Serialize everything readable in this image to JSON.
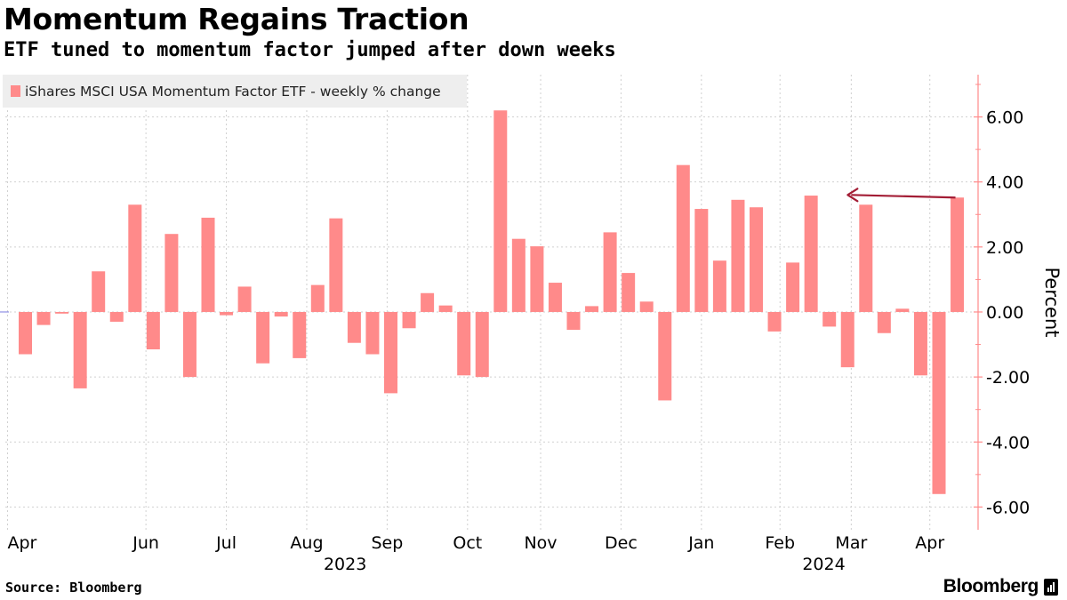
{
  "title": "Momentum Regains Traction",
  "subtitle": "ETF tuned to momentum factor jumped after down weeks",
  "source": "Source: Bloomberg",
  "brand": "Bloomberg",
  "colors": {
    "bar": "#ff8a8a",
    "arrow": "#a31d35",
    "grid": "#d0d0d0",
    "axis": "#ff8a8a",
    "legend_bg": "#eeeeee",
    "text": "#000000"
  },
  "chart_data": {
    "type": "bar",
    "title": "Momentum Regains Traction",
    "subtitle": "ETF tuned to momentum factor jumped after down weeks",
    "series": [
      {
        "name": "iShares MSCI USA Momentum Factor ETF - weekly % change",
        "values": [
          -1.3,
          -0.4,
          -0.05,
          -2.35,
          1.25,
          -0.3,
          3.3,
          -1.15,
          2.4,
          -2.0,
          2.9,
          -0.1,
          0.78,
          -1.58,
          -0.14,
          -1.42,
          0.83,
          2.88,
          -0.95,
          -1.3,
          -2.5,
          -0.5,
          0.58,
          0.2,
          -1.95,
          -2.0,
          6.2,
          2.25,
          2.02,
          0.9,
          -0.55,
          0.18,
          2.45,
          1.2,
          0.32,
          -2.72,
          4.52,
          3.17,
          1.58,
          3.45,
          3.22,
          -0.6,
          1.52,
          3.58,
          -0.45,
          -1.7,
          3.3,
          -0.65,
          0.1,
          -1.95,
          -5.6,
          3.52
        ]
      }
    ],
    "xlabel": "",
    "ylabel": "Percent",
    "ylim": [
      -6.7,
      7.3
    ],
    "yticks": [
      -6.0,
      -4.0,
      -2.0,
      0.0,
      2.0,
      4.0,
      6.0
    ],
    "ytick_labels": [
      "-6.00",
      "-4.00",
      "-2.00",
      "0.00",
      "2.00",
      "4.00",
      "6.00"
    ],
    "y_axis_position": "right",
    "xtick_labels": [
      {
        "label": "Apr",
        "week": 0
      },
      {
        "label": "Jun",
        "week": 6.6
      },
      {
        "label": "Jul",
        "week": 11
      },
      {
        "label": "Aug",
        "week": 15.4
      },
      {
        "label": "Sep",
        "week": 19.8
      },
      {
        "label": "Oct",
        "week": 24.2
      },
      {
        "label": "Nov",
        "week": 28.2
      },
      {
        "label": "Dec",
        "week": 32.6
      },
      {
        "label": "Jan",
        "week": 37
      },
      {
        "label": "Feb",
        "week": 41.3
      },
      {
        "label": "Mar",
        "week": 45.2
      },
      {
        "label": "Apr",
        "week": 49.5
      }
    ],
    "year_labels": [
      {
        "label": "2023",
        "week": 17.5
      },
      {
        "label": "2024",
        "week": 43.7
      }
    ],
    "annotation": {
      "type": "arrow",
      "from_week": 51,
      "from_value": 3.52,
      "to_week": 45.2,
      "to_value": 3.6
    },
    "grid": true,
    "legend_position": "top-left"
  }
}
